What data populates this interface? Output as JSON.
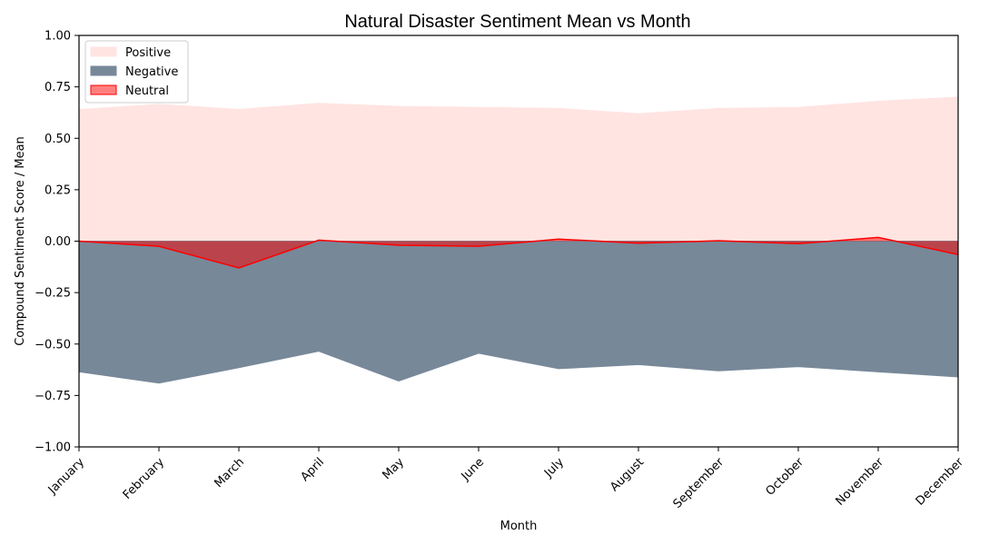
{
  "chart_data": {
    "type": "area",
    "title": "Natural Disaster Sentiment Mean vs Month",
    "xlabel": "Month",
    "ylabel": "Compound Sentiment Score / Mean",
    "ylim": [
      -1.0,
      1.0
    ],
    "yticks": [
      "−1.00",
      "−0.75",
      "−0.50",
      "−0.25",
      "0.00",
      "0.25",
      "0.50",
      "0.75",
      "1.00"
    ],
    "ytick_values": [
      -1.0,
      -0.75,
      -0.5,
      -0.25,
      0.0,
      0.25,
      0.5,
      0.75,
      1.0
    ],
    "categories": [
      "January",
      "February",
      "March",
      "April",
      "May",
      "June",
      "July",
      "August",
      "September",
      "October",
      "November",
      "December"
    ],
    "grid": false,
    "legend_position": "top-left",
    "series": [
      {
        "name": "Positive",
        "values": [
          0.64,
          0.665,
          0.64,
          0.67,
          0.655,
          0.65,
          0.645,
          0.62,
          0.645,
          0.65,
          0.68,
          0.7
        ],
        "color": "#ffe4e1"
      },
      {
        "name": "Negative",
        "values": [
          -0.635,
          -0.69,
          -0.615,
          -0.535,
          -0.68,
          -0.545,
          -0.62,
          -0.6,
          -0.63,
          -0.61,
          -0.635,
          -0.66
        ],
        "color": "#778899"
      },
      {
        "name": "Neutral",
        "values": [
          0.0,
          -0.025,
          -0.13,
          0.005,
          -0.02,
          -0.025,
          0.01,
          -0.01,
          0.002,
          -0.012,
          0.018,
          -0.065
        ],
        "color": "#ff0000"
      }
    ]
  }
}
